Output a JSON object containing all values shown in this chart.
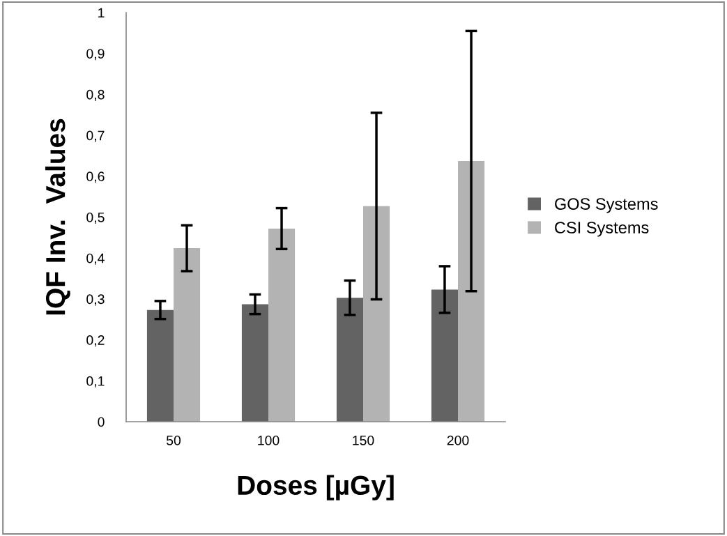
{
  "chart_data": {
    "type": "bar",
    "xlabel": "Doses [µGy]",
    "ylabel": "IQF Inv.  Values",
    "categories": [
      "50",
      "100",
      "150",
      "200"
    ],
    "series": [
      {
        "name": "GOS Systems",
        "color": "#636363",
        "values": [
          0.273,
          0.287,
          0.303,
          0.323
        ],
        "errors": [
          0.022,
          0.024,
          0.042,
          0.057
        ]
      },
      {
        "name": "CSI Systems",
        "color": "#b3b3b3",
        "values": [
          0.424,
          0.472,
          0.527,
          0.637
        ],
        "errors": [
          0.056,
          0.05,
          0.228,
          0.318
        ]
      }
    ],
    "ylim": [
      0,
      1
    ],
    "yticks": [
      0,
      {
        "value": 0.1,
        "label": "0,1"
      },
      {
        "value": 0.2,
        "label": "0,2"
      },
      {
        "value": 0.3,
        "label": "0,3"
      },
      {
        "value": 0.4,
        "label": "0,4"
      },
      {
        "value": 0.5,
        "label": "0,5"
      },
      {
        "value": 0.6,
        "label": "0,6"
      },
      {
        "value": 0.7,
        "label": "0,7"
      },
      {
        "value": 0.8,
        "label": "0,8"
      },
      {
        "value": 0.9,
        "label": "0,9"
      },
      1
    ],
    "grid": false,
    "legend": "right"
  }
}
